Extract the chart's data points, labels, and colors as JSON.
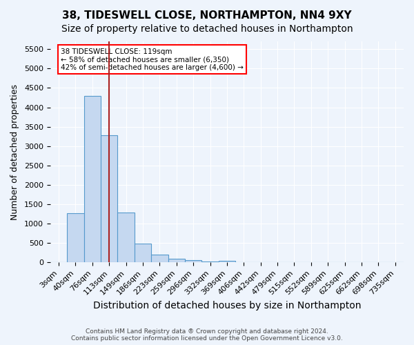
{
  "title1": "38, TIDESWELL CLOSE, NORTHAMPTON, NN4 9XY",
  "title2": "Size of property relative to detached houses in Northampton",
  "xlabel": "Distribution of detached houses by size in Northampton",
  "ylabel": "Number of detached properties",
  "footer1": "Contains HM Land Registry data ® Crown copyright and database right 2024.",
  "footer2": "Contains public sector information licensed under the Open Government Licence v3.0.",
  "bin_labels": [
    "3sqm",
    "40sqm",
    "76sqm",
    "113sqm",
    "149sqm",
    "186sqm",
    "223sqm",
    "259sqm",
    "296sqm",
    "332sqm",
    "369sqm",
    "406sqm",
    "442sqm",
    "479sqm",
    "515sqm",
    "552sqm",
    "589sqm",
    "625sqm",
    "662sqm",
    "698sqm",
    "735sqm"
  ],
  "bar_values": [
    0,
    1270,
    4300,
    3280,
    1280,
    480,
    200,
    90,
    60,
    30,
    50,
    0,
    0,
    0,
    0,
    0,
    0,
    0,
    0,
    0,
    0
  ],
  "bar_color": "#c5d8f0",
  "bar_edge_color": "#5599cc",
  "vline_x": 3.0,
  "vline_color": "#aa2222",
  "annotation_text": "38 TIDESWELL CLOSE: 119sqm\n← 58% of detached houses are smaller (6,350)\n42% of semi-detached houses are larger (4,600) →",
  "ylim": [
    0,
    5700
  ],
  "yticks": [
    0,
    500,
    1000,
    1500,
    2000,
    2500,
    3000,
    3500,
    4000,
    4500,
    5000,
    5500
  ],
  "background_color": "#eef4fc",
  "plot_bg_color": "#eef4fc",
  "grid_color": "#ffffff",
  "title1_fontsize": 11,
  "title2_fontsize": 10,
  "xlabel_fontsize": 10,
  "ylabel_fontsize": 9,
  "tick_fontsize": 8
}
